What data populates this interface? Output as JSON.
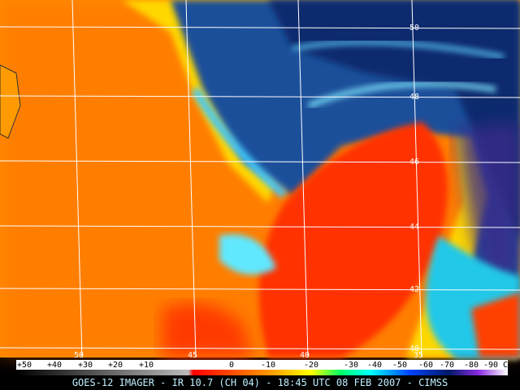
{
  "map": {
    "lat_labels": [
      "50",
      "48",
      "46",
      "44",
      "42",
      "40"
    ],
    "lon_labels": [
      "50",
      "45",
      "40",
      "35"
    ]
  },
  "colorbar": {
    "labels": [
      "+50",
      "+40",
      "+30",
      "+20",
      "+10",
      "0",
      "-10",
      "-20",
      "-30",
      "-40",
      "-50",
      "-60",
      "-70",
      "-80",
      "-90 C"
    ]
  },
  "caption": "GOES-12 IMAGER - IR 10.7 (CH 04) - 18:45 UTC 08 FEB 2007 - CIMSS"
}
